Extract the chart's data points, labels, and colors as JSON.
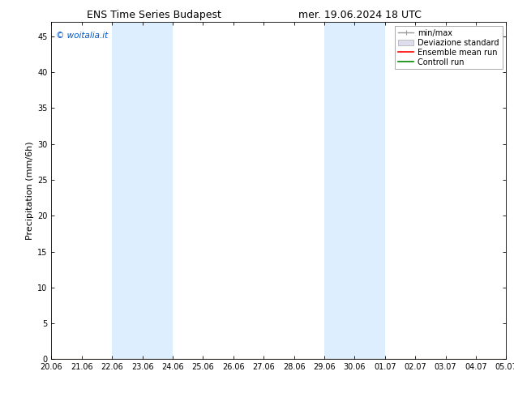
{
  "title_left": "ENS Time Series Budapest",
  "title_right": "mer. 19.06.2024 18 UTC",
  "ylabel": "Precipitation (mm/6h)",
  "watermark": "© woitalia.it",
  "watermark_color": "#0055cc",
  "x_tick_labels": [
    "20.06",
    "21.06",
    "22.06",
    "23.06",
    "24.06",
    "25.06",
    "26.06",
    "27.06",
    "28.06",
    "29.06",
    "30.06",
    "01.07",
    "02.07",
    "03.07",
    "04.07",
    "05.07"
  ],
  "y_ticks": [
    0,
    5,
    10,
    15,
    20,
    25,
    30,
    35,
    40,
    45
  ],
  "ylim": [
    0,
    47
  ],
  "xlim": [
    0,
    15
  ],
  "shaded_bands": [
    {
      "x_start": 2.0,
      "x_end": 4.0,
      "color": "#ddeeff"
    },
    {
      "x_start": 9.0,
      "x_end": 11.0,
      "color": "#ddeeff"
    }
  ],
  "background_color": "#ffffff",
  "legend_labels": [
    "min/max",
    "Deviazione standard",
    "Ensemble mean run",
    "Controll run"
  ],
  "legend_colors": [
    "#999999",
    "#cccccc",
    "#ff0000",
    "#008800"
  ],
  "title_fontsize": 9,
  "tick_fontsize": 7,
  "ylabel_fontsize": 8,
  "legend_fontsize": 7
}
